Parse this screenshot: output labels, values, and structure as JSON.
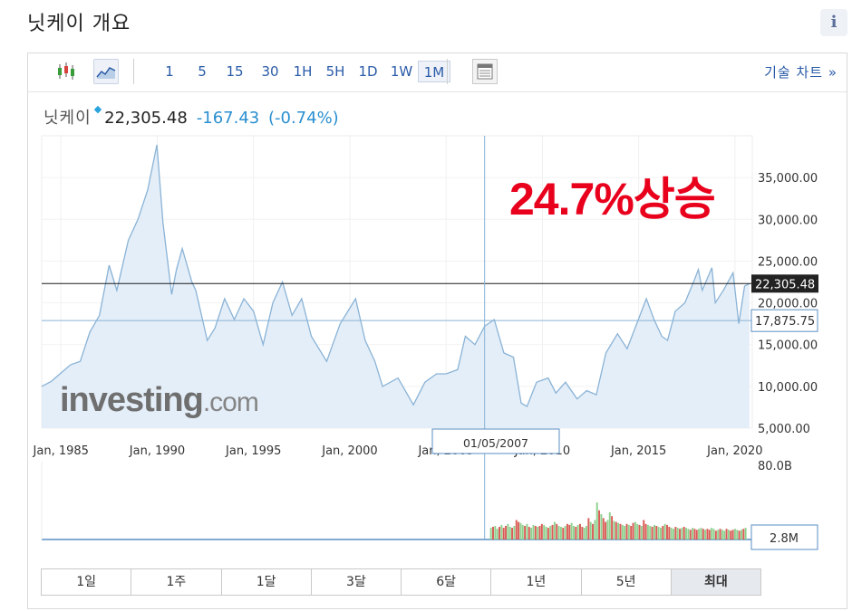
{
  "header": {
    "title": "닛케이 개요",
    "info_label": "i"
  },
  "toolbar": {
    "intervals": [
      "1",
      "5",
      "15",
      "30",
      "1H",
      "5H",
      "1D",
      "1W",
      "1M"
    ],
    "active_interval": "1M",
    "tech_chart_label": "기술 차트 »"
  },
  "quote": {
    "name": "닛케이",
    "price": "22,305.48",
    "change": "-167.43",
    "change_pct": "(-0.74%)"
  },
  "annotation": "24.7%상승",
  "watermark": {
    "brand": "investing",
    "suffix": ".com"
  },
  "crosshair": {
    "date": "01/05/2007",
    "price": "17,875.75",
    "volume": "2.8M"
  },
  "colors": {
    "line": "#8ab3d6",
    "area": "#e4eef8",
    "current": "#1a1a1a",
    "crosshair": "#8ab3d6",
    "annotation": "#e8001c",
    "vol_up": "#8fd08f",
    "vol_down": "#d95b55"
  },
  "chart_data": {
    "type": "area",
    "title": "",
    "ylim": [
      5000,
      40000
    ],
    "x_range": [
      "1984-01",
      "2020-09"
    ],
    "current_price_label": "22,305.48",
    "yticks": [
      {
        "value": 5000,
        "label": "5,000.00"
      },
      {
        "value": 10000,
        "label": "10,000.00"
      },
      {
        "value": 15000,
        "label": "15,000.00"
      },
      {
        "value": 20000,
        "label": "20,000.00"
      },
      {
        "value": 25000,
        "label": "25,000.00"
      },
      {
        "value": 30000,
        "label": "30,000.00"
      },
      {
        "value": 35000,
        "label": "35,000.00"
      }
    ],
    "xticks": [
      {
        "year": 1985.0,
        "label": "Jan, 1985"
      },
      {
        "year": 1990.0,
        "label": "Jan, 1990"
      },
      {
        "year": 1995.0,
        "label": "Jan, 1995"
      },
      {
        "year": 2000.0,
        "label": "Jan, 2000"
      },
      {
        "year": 2005.0,
        "label": "Jan, 2005"
      },
      {
        "year": 2010.0,
        "label": "Jan, 2010"
      },
      {
        "year": 2015.0,
        "label": "Jan, 2015"
      },
      {
        "year": 2020.0,
        "label": "Jan, 2020"
      }
    ],
    "series": [
      {
        "points": [
          [
            1984.0,
            10000
          ],
          [
            1984.5,
            10600
          ],
          [
            1985.0,
            11600
          ],
          [
            1985.5,
            12600
          ],
          [
            1986.0,
            13000
          ],
          [
            1986.5,
            16500
          ],
          [
            1987.0,
            18500
          ],
          [
            1987.5,
            24500
          ],
          [
            1987.9,
            21500
          ],
          [
            1988.5,
            27500
          ],
          [
            1989.0,
            30000
          ],
          [
            1989.5,
            33500
          ],
          [
            1989.98,
            38916
          ],
          [
            1990.3,
            29500
          ],
          [
            1990.75,
            21000
          ],
          [
            1991.0,
            24000
          ],
          [
            1991.3,
            26500
          ],
          [
            1991.8,
            22500
          ],
          [
            1992.0,
            21500
          ],
          [
            1992.6,
            15500
          ],
          [
            1993.0,
            17000
          ],
          [
            1993.5,
            20500
          ],
          [
            1994.0,
            18000
          ],
          [
            1994.5,
            20500
          ],
          [
            1995.0,
            19000
          ],
          [
            1995.5,
            15000
          ],
          [
            1996.0,
            20000
          ],
          [
            1996.5,
            22500
          ],
          [
            1997.0,
            18500
          ],
          [
            1997.5,
            20500
          ],
          [
            1998.0,
            16000
          ],
          [
            1998.8,
            13000
          ],
          [
            1999.5,
            17500
          ],
          [
            2000.3,
            20500
          ],
          [
            2000.8,
            15500
          ],
          [
            2001.3,
            13000
          ],
          [
            2001.7,
            10000
          ],
          [
            2002.5,
            11000
          ],
          [
            2003.3,
            7800
          ],
          [
            2003.9,
            10500
          ],
          [
            2004.5,
            11500
          ],
          [
            2005.0,
            11500
          ],
          [
            2005.6,
            12000
          ],
          [
            2006.0,
            16000
          ],
          [
            2006.5,
            15000
          ],
          [
            2007.0,
            17200
          ],
          [
            2007.5,
            18000
          ],
          [
            2008.0,
            14000
          ],
          [
            2008.5,
            13500
          ],
          [
            2008.9,
            8000
          ],
          [
            2009.2,
            7600
          ],
          [
            2009.7,
            10500
          ],
          [
            2010.3,
            11000
          ],
          [
            2010.7,
            9200
          ],
          [
            2011.2,
            10500
          ],
          [
            2011.8,
            8500
          ],
          [
            2012.3,
            9500
          ],
          [
            2012.8,
            9000
          ],
          [
            2013.3,
            14000
          ],
          [
            2013.9,
            16300
          ],
          [
            2014.4,
            14500
          ],
          [
            2014.9,
            17500
          ],
          [
            2015.4,
            20500
          ],
          [
            2015.8,
            18000
          ],
          [
            2016.2,
            16000
          ],
          [
            2016.5,
            15500
          ],
          [
            2016.9,
            19000
          ],
          [
            2017.4,
            20000
          ],
          [
            2017.9,
            22800
          ],
          [
            2018.1,
            24000
          ],
          [
            2018.3,
            21500
          ],
          [
            2018.8,
            24200
          ],
          [
            2018.98,
            20000
          ],
          [
            2019.4,
            21500
          ],
          [
            2019.9,
            23600
          ],
          [
            2020.2,
            17500
          ],
          [
            2020.5,
            22000
          ],
          [
            2020.75,
            22305
          ]
        ]
      }
    ],
    "volume": {
      "ylim": [
        0,
        80
      ],
      "ytick_label": "80.0B",
      "data_start_year": 2007.0,
      "bars": [
        12,
        13,
        14,
        11,
        13,
        15,
        12,
        14,
        16,
        13,
        12,
        14,
        20,
        18,
        17,
        15,
        14,
        16,
        13,
        12,
        15,
        14,
        13,
        14,
        16,
        15,
        13,
        12,
        14,
        15,
        18,
        16,
        14,
        13,
        12,
        14,
        16,
        15,
        17,
        14,
        13,
        15,
        16,
        13,
        12,
        14,
        22,
        18,
        16,
        20,
        38,
        30,
        26,
        22,
        18,
        20,
        28,
        24,
        19,
        18,
        17,
        16,
        15,
        14,
        16,
        15,
        14,
        17,
        18,
        16,
        15,
        14,
        20,
        16,
        15,
        14,
        13,
        15,
        14,
        13,
        12,
        14,
        16,
        15,
        13,
        12,
        11,
        13,
        12,
        11,
        12,
        13,
        12,
        11,
        10,
        12,
        11,
        10,
        11,
        12,
        11,
        10,
        11,
        10,
        12,
        11,
        9,
        10,
        11,
        10,
        9,
        11,
        10,
        9,
        10,
        11,
        10,
        9,
        10,
        11,
        12
      ],
      "bar_up_pattern": [
        1,
        0,
        1,
        1,
        0,
        1,
        0,
        0,
        1,
        1,
        0,
        1,
        0,
        0,
        1,
        1,
        0,
        1,
        0,
        1,
        1,
        0,
        1,
        0,
        0,
        1,
        1,
        0,
        1,
        0
      ]
    }
  },
  "range_buttons": [
    "1일",
    "1주",
    "1달",
    "3달",
    "6달",
    "1년",
    "5년",
    "최대"
  ],
  "active_range": "최대"
}
